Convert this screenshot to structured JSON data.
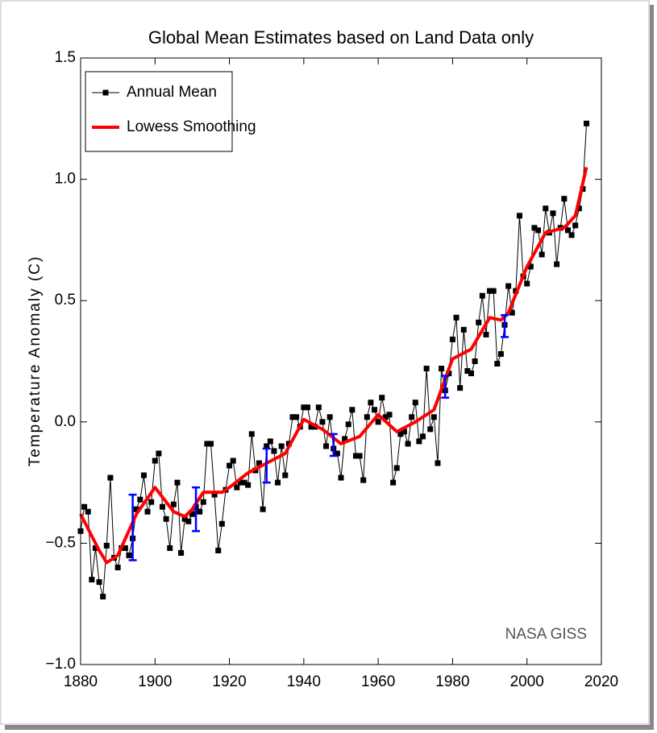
{
  "chart_data": {
    "type": "line",
    "title": "Global Mean Estimates based on Land Data only",
    "y_label": "Temperature Anomaly (C)",
    "annotation": "NASA GISS",
    "xlim": [
      1880,
      2020
    ],
    "xticks": [
      1880,
      1900,
      1920,
      1940,
      1960,
      1980,
      2000,
      2020
    ],
    "ylim": [
      -1.0,
      1.5
    ],
    "yticks": [
      {
        "value": -1.0,
        "label": "−1.0"
      },
      {
        "value": -0.5,
        "label": "−0.5"
      },
      {
        "value": 0.0,
        "label": "0.0"
      },
      {
        "value": 0.5,
        "label": "0.5"
      },
      {
        "value": 1.0,
        "label": "1.0"
      },
      {
        "value": 1.5,
        "label": "1.5"
      }
    ],
    "legend": "upper left",
    "series": [
      {
        "name": "Annual Mean",
        "color": "#000000",
        "x": [
          1880,
          1881,
          1882,
          1883,
          1884,
          1885,
          1886,
          1887,
          1888,
          1889,
          1890,
          1891,
          1892,
          1893,
          1894,
          1895,
          1896,
          1897,
          1898,
          1899,
          1900,
          1901,
          1902,
          1903,
          1904,
          1905,
          1906,
          1907,
          1908,
          1909,
          1910,
          1911,
          1912,
          1913,
          1914,
          1915,
          1916,
          1917,
          1918,
          1919,
          1920,
          1921,
          1922,
          1923,
          1924,
          1925,
          1926,
          1927,
          1928,
          1929,
          1930,
          1931,
          1932,
          1933,
          1934,
          1935,
          1936,
          1937,
          1938,
          1939,
          1940,
          1941,
          1942,
          1943,
          1944,
          1945,
          1946,
          1947,
          1948,
          1949,
          1950,
          1951,
          1952,
          1953,
          1954,
          1955,
          1956,
          1957,
          1958,
          1959,
          1960,
          1961,
          1962,
          1963,
          1964,
          1965,
          1966,
          1967,
          1968,
          1969,
          1970,
          1971,
          1972,
          1973,
          1974,
          1975,
          1976,
          1977,
          1978,
          1979,
          1980,
          1981,
          1982,
          1983,
          1984,
          1985,
          1986,
          1987,
          1988,
          1989,
          1990,
          1991,
          1992,
          1993,
          1994,
          1995,
          1996,
          1997,
          1998,
          1999,
          2000,
          2001,
          2002,
          2003,
          2004,
          2005,
          2006,
          2007,
          2008,
          2009,
          2010,
          2011,
          2012,
          2013,
          2014,
          2015,
          2016
        ],
        "values": [
          -0.45,
          -0.35,
          -0.37,
          -0.65,
          -0.52,
          -0.66,
          -0.72,
          -0.51,
          -0.23,
          -0.56,
          -0.6,
          -0.52,
          -0.52,
          -0.55,
          -0.48,
          -0.36,
          -0.32,
          -0.22,
          -0.37,
          -0.33,
          -0.16,
          -0.13,
          -0.35,
          -0.4,
          -0.52,
          -0.34,
          -0.25,
          -0.54,
          -0.4,
          -0.41,
          -0.38,
          -0.35,
          -0.37,
          -0.33,
          -0.09,
          -0.09,
          -0.3,
          -0.53,
          -0.42,
          -0.28,
          -0.18,
          -0.16,
          -0.27,
          -0.25,
          -0.25,
          -0.26,
          -0.05,
          -0.2,
          -0.17,
          -0.36,
          -0.1,
          -0.08,
          -0.12,
          -0.25,
          -0.1,
          -0.22,
          -0.09,
          0.02,
          0.02,
          -0.02,
          0.06,
          0.06,
          -0.02,
          -0.02,
          0.06,
          0.0,
          -0.1,
          0.02,
          -0.11,
          -0.13,
          -0.23,
          -0.07,
          -0.01,
          0.05,
          -0.14,
          -0.14,
          -0.24,
          0.02,
          0.08,
          0.05,
          0.0,
          0.1,
          0.02,
          0.03,
          -0.25,
          -0.19,
          -0.05,
          -0.04,
          -0.09,
          0.02,
          0.08,
          -0.08,
          -0.06,
          0.22,
          -0.03,
          0.02,
          -0.17,
          0.22,
          0.13,
          0.2,
          0.34,
          0.43,
          0.14,
          0.38,
          0.21,
          0.2,
          0.25,
          0.41,
          0.52,
          0.36,
          0.54,
          0.54,
          0.24,
          0.28,
          0.4,
          0.56,
          0.45,
          0.54,
          0.85,
          0.6,
          0.57,
          0.64,
          0.8,
          0.79,
          0.69,
          0.88,
          0.78,
          0.86,
          0.65,
          0.8,
          0.92,
          0.79,
          0.77,
          0.81,
          0.88,
          0.96,
          1.23
        ]
      },
      {
        "name": "Lowess Smoothing",
        "color": "#ff0000",
        "x": [
          1880,
          1885,
          1887,
          1890,
          1895,
          1900,
          1905,
          1908,
          1910,
          1913,
          1918,
          1920,
          1925,
          1930,
          1935,
          1940,
          1945,
          1950,
          1955,
          1960,
          1965,
          1970,
          1975,
          1980,
          1985,
          1990,
          1993,
          1995,
          2000,
          2005,
          2010,
          2013,
          2016
        ],
        "values": [
          -0.38,
          -0.53,
          -0.58,
          -0.55,
          -0.38,
          -0.27,
          -0.37,
          -0.39,
          -0.36,
          -0.29,
          -0.29,
          -0.27,
          -0.21,
          -0.17,
          -0.13,
          0.01,
          -0.03,
          -0.09,
          -0.06,
          0.03,
          -0.04,
          0.0,
          0.05,
          0.26,
          0.3,
          0.43,
          0.42,
          0.45,
          0.64,
          0.78,
          0.8,
          0.85,
          1.05
        ]
      }
    ],
    "error_bars": {
      "color": "#0000ff",
      "x": [
        1894,
        1911,
        1930,
        1948,
        1978,
        1994
      ],
      "values": [
        -0.435,
        -0.36,
        -0.18,
        -0.095,
        0.145,
        0.395
      ],
      "errors": [
        0.135,
        0.09,
        0.07,
        0.045,
        0.045,
        0.045
      ]
    }
  }
}
